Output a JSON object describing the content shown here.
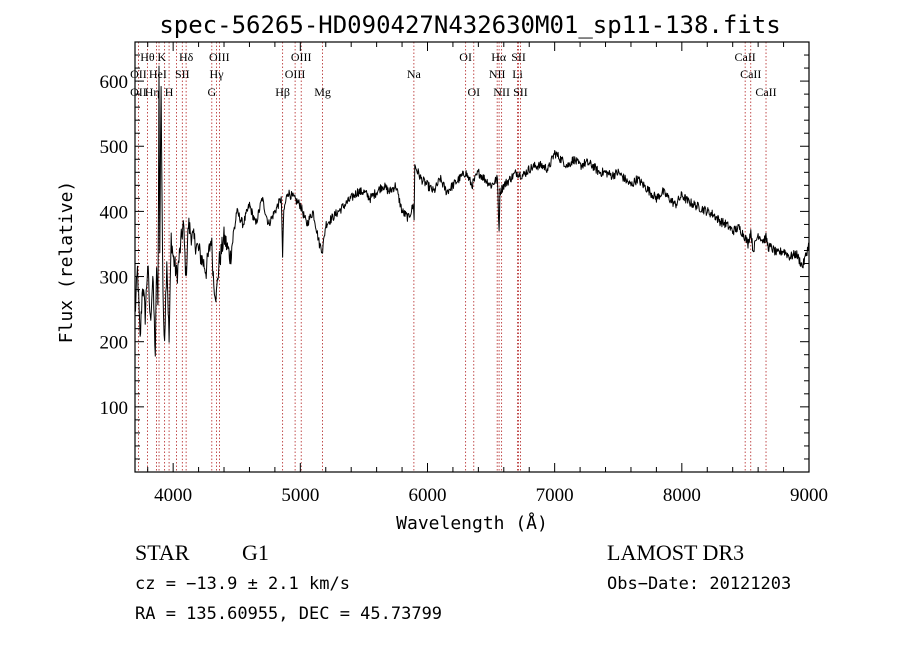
{
  "chart_data": {
    "type": "line",
    "title": "spec-56265-HD090427N432630M01_sp11-138.fits",
    "xlabel": "Wavelength (Å)",
    "ylabel": "Flux (relative)",
    "xlim": [
      3700,
      9000
    ],
    "ylim": [
      0,
      660
    ],
    "xticks": [
      4000,
      5000,
      6000,
      7000,
      8000,
      9000
    ],
    "yticks": [
      100,
      200,
      300,
      400,
      500,
      600
    ],
    "series": [
      {
        "name": "spectrum",
        "x": [
          3700,
          3720,
          3740,
          3760,
          3780,
          3800,
          3820,
          3840,
          3860,
          3870,
          3880,
          3889,
          3895,
          3905,
          3920,
          3933,
          3950,
          3968,
          3985,
          4000,
          4030,
          4060,
          4080,
          4101,
          4120,
          4150,
          4180,
          4220,
          4260,
          4300,
          4320,
          4340,
          4360,
          4400,
          4450,
          4500,
          4550,
          4600,
          4650,
          4700,
          4750,
          4800,
          4850,
          4861,
          4870,
          4900,
          4950,
          5000,
          5050,
          5100,
          5150,
          5175,
          5200,
          5250,
          5300,
          5350,
          5400,
          5450,
          5500,
          5550,
          5600,
          5650,
          5700,
          5750,
          5800,
          5850,
          5890,
          5895,
          5900,
          5950,
          6000,
          6050,
          6100,
          6150,
          6200,
          6250,
          6300,
          6350,
          6400,
          6450,
          6500,
          6550,
          6563,
          6570,
          6600,
          6650,
          6700,
          6750,
          6800,
          6850,
          6900,
          6950,
          7000,
          7050,
          7100,
          7150,
          7200,
          7250,
          7300,
          7350,
          7400,
          7450,
          7500,
          7550,
          7600,
          7650,
          7700,
          7750,
          7800,
          7850,
          7900,
          7950,
          8000,
          8050,
          8100,
          8150,
          8200,
          8250,
          8300,
          8350,
          8400,
          8450,
          8500,
          8520,
          8542,
          8560,
          8600,
          8640,
          8662,
          8680,
          8700,
          8750,
          8800,
          8850,
          8900,
          8950,
          9000
        ],
        "values": [
          240,
          310,
          200,
          290,
          240,
          320,
          230,
          300,
          180,
          320,
          250,
          620,
          330,
          600,
          260,
          210,
          330,
          200,
          360,
          330,
          300,
          350,
          380,
          300,
          380,
          360,
          350,
          330,
          310,
          360,
          290,
          270,
          320,
          360,
          330,
          400,
          380,
          410,
          380,
          420,
          380,
          400,
          420,
          330,
          400,
          430,
          420,
          410,
          380,
          400,
          350,
          340,
          380,
          390,
          400,
          410,
          420,
          430,
          430,
          420,
          430,
          440,
          430,
          440,
          400,
          390,
          410,
          390,
          470,
          450,
          440,
          430,
          450,
          430,
          440,
          450,
          460,
          440,
          460,
          450,
          440,
          450,
          370,
          430,
          440,
          450,
          460,
          455,
          465,
          470,
          470,
          465,
          490,
          480,
          470,
          480,
          470,
          475,
          470,
          460,
          460,
          455,
          460,
          450,
          440,
          450,
          440,
          430,
          420,
          430,
          420,
          410,
          425,
          415,
          410,
          405,
          400,
          395,
          385,
          380,
          370,
          375,
          360,
          350,
          370,
          340,
          365,
          355,
          360,
          345,
          345,
          335,
          340,
          330,
          335,
          315,
          350
        ]
      }
    ],
    "line_markers": [
      {
        "w": 3727,
        "top": "OII"
      },
      {
        "w": 3798,
        "top": "Hθ"
      },
      {
        "w": 3869,
        "top": "OIII"
      },
      {
        "w": 3889,
        "top": "HeI"
      },
      {
        "w": 3933,
        "top": "K"
      },
      {
        "w": 3968,
        "top": "H"
      },
      {
        "w": 4026,
        "top": "HeI"
      },
      {
        "w": 4072,
        "top": "SII"
      },
      {
        "w": 4102,
        "top": "Hδ"
      },
      {
        "w": 4304,
        "top": "G"
      },
      {
        "w": 4341,
        "top": "Hγ"
      },
      {
        "w": 4364,
        "top": "OIII"
      },
      {
        "w": 4861,
        "top": "Hβ"
      },
      {
        "w": 4959,
        "top": "OIII"
      },
      {
        "w": 5007,
        "top": "OIII"
      },
      {
        "w": 5175,
        "top": "Mg"
      },
      {
        "w": 5893,
        "top": "Na"
      },
      {
        "w": 6300,
        "top": "OI"
      },
      {
        "w": 6364,
        "top": "OI"
      },
      {
        "w": 6548,
        "top": "NII"
      },
      {
        "w": 6563,
        "top": "Hα"
      },
      {
        "w": 6583,
        "top": "NII"
      },
      {
        "w": 6708,
        "top": "Li"
      },
      {
        "w": 6716,
        "top": "SII"
      },
      {
        "w": 6731,
        "top": "SII"
      },
      {
        "w": 8498,
        "top": "CaII"
      },
      {
        "w": 8542,
        "top": "CaII"
      },
      {
        "w": 8662,
        "top": "CaII"
      }
    ],
    "line_labels_row1": [
      {
        "w": 3798,
        "text": "Hθ"
      },
      {
        "w": 3910,
        "text": "K"
      },
      {
        "w": 4102,
        "text": "Hδ"
      },
      {
        "w": 4363,
        "text": "OIII"
      },
      {
        "w": 5007,
        "text": "OIII"
      },
      {
        "w": 6300,
        "text": "OI"
      },
      {
        "w": 6560,
        "text": "Hα"
      },
      {
        "w": 6716,
        "text": "SII"
      },
      {
        "w": 8498,
        "text": "CaII"
      }
    ],
    "line_labels_row2": [
      {
        "w": 3727,
        "text": "OII"
      },
      {
        "w": 3880,
        "text": "HeI"
      },
      {
        "w": 4072,
        "text": "SII"
      },
      {
        "w": 4341,
        "text": "Hγ"
      },
      {
        "w": 4959,
        "text": "OIII"
      },
      {
        "w": 5893,
        "text": "Na"
      },
      {
        "w": 6548,
        "text": "NII"
      },
      {
        "w": 6708,
        "text": "Li"
      },
      {
        "w": 8542,
        "text": "CaII"
      }
    ],
    "line_labels_row3": [
      {
        "w": 3727,
        "text": "OII"
      },
      {
        "w": 3835,
        "text": "Hη"
      },
      {
        "w": 3968,
        "text": "H"
      },
      {
        "w": 4304,
        "text": "G"
      },
      {
        "w": 4861,
        "text": "Hβ"
      },
      {
        "w": 5175,
        "text": "Mg"
      },
      {
        "w": 6364,
        "text": "OI"
      },
      {
        "w": 6583,
        "text": "NII"
      },
      {
        "w": 6731,
        "text": "SII"
      },
      {
        "w": 8662,
        "text": "CaII"
      }
    ]
  },
  "info": {
    "class_label": "STAR",
    "subclass": "G1",
    "survey": "LAMOST DR3",
    "redshift_line": "cz = −13.9 ± 2.1 km/s",
    "obs_date_line": "Obs−Date: 20121203",
    "coords_line": "RA = 135.60955, DEC =  45.73799"
  },
  "colors": {
    "spectrum": "#000000",
    "marker": "#b22222",
    "axis": "#000000"
  }
}
